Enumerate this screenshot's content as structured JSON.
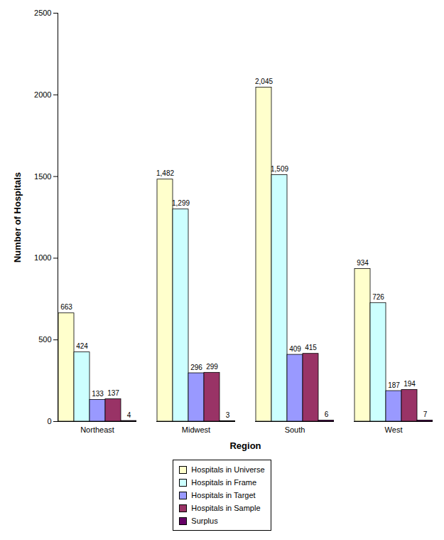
{
  "chart_data": {
    "type": "bar",
    "x_label": "Region",
    "y_label": "Number of Hospitals",
    "categories": [
      "Northeast",
      "Midwest",
      "South",
      "West"
    ],
    "series": [
      {
        "name": "Hospitals in Universe",
        "color": "#ffffcc",
        "values": [
          663,
          1482,
          2045,
          934
        ],
        "value_labels": [
          "663",
          "1,482",
          "2,045",
          "934"
        ]
      },
      {
        "name": "Hospitals in Frame",
        "color": "#ccffff",
        "values": [
          424,
          1299,
          1509,
          726
        ],
        "value_labels": [
          "424",
          "1,299",
          "1,509",
          "726"
        ]
      },
      {
        "name": "Hospitals in Target",
        "color": "#9999ff",
        "values": [
          133,
          296,
          409,
          187
        ],
        "value_labels": [
          "133",
          "296",
          "409",
          "187"
        ]
      },
      {
        "name": "Hospitals in Sample",
        "color": "#993366",
        "values": [
          137,
          299,
          415,
          194
        ],
        "value_labels": [
          "137",
          "299",
          "415",
          "194"
        ]
      },
      {
        "name": "Surplus",
        "color": "#660066",
        "values": [
          4,
          3,
          6,
          7
        ],
        "value_labels": [
          "4",
          "3",
          "6",
          "7"
        ]
      }
    ],
    "ylim": [
      0,
      2500
    ],
    "yticks": [
      0,
      500,
      1000,
      1500,
      2000,
      2500
    ],
    "data_labels": true,
    "grid": false,
    "legend": "bottom"
  }
}
